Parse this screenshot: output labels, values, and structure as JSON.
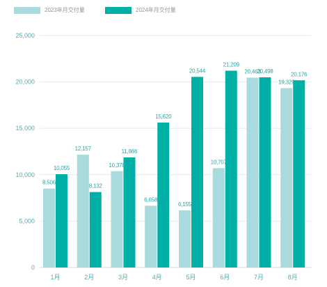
{
  "legend": {
    "items": [
      {
        "label": "2023年月交付量",
        "color": "#a9dadd"
      },
      {
        "label": "2024年月交付量",
        "color": "#00afa5"
      }
    ]
  },
  "chart_data": {
    "type": "bar",
    "title": "",
    "xlabel": "",
    "ylabel": "",
    "categories": [
      "1月",
      "2月",
      "3月",
      "4月",
      "5月",
      "6月",
      "7月",
      "8月"
    ],
    "series": [
      {
        "name": "2023年月交付量",
        "color": "#a9dadd",
        "values": [
          8506,
          12157,
          10378,
          6658,
          6155,
          10707,
          20463,
          19329
        ],
        "labels": [
          "8,506",
          "12,157",
          "10,378",
          "6,658",
          "6,155",
          "10,707",
          "20,463",
          "19,329"
        ]
      },
      {
        "name": "2024年月交付量",
        "color": "#00afa5",
        "values": [
          10055,
          8132,
          11866,
          15620,
          20544,
          21209,
          20498,
          20176
        ],
        "labels": [
          "10,055",
          "8,132",
          "11,866",
          "15,620",
          "20,544",
          "21,209",
          "20,498",
          "20,176"
        ]
      }
    ],
    "ylim": [
      0,
      25000
    ],
    "yticks": [
      0,
      5000,
      10000,
      15000,
      20000,
      25000
    ],
    "ytick_labels": [
      "0",
      "5,000",
      "10,000",
      "15,000",
      "20,000",
      "25,000"
    ],
    "grid": true,
    "legend_position": "top-left",
    "colors": {
      "axis_text": "#5aa9a9",
      "data_label": "#2fa3a3",
      "grid": "#e6eaea"
    }
  }
}
